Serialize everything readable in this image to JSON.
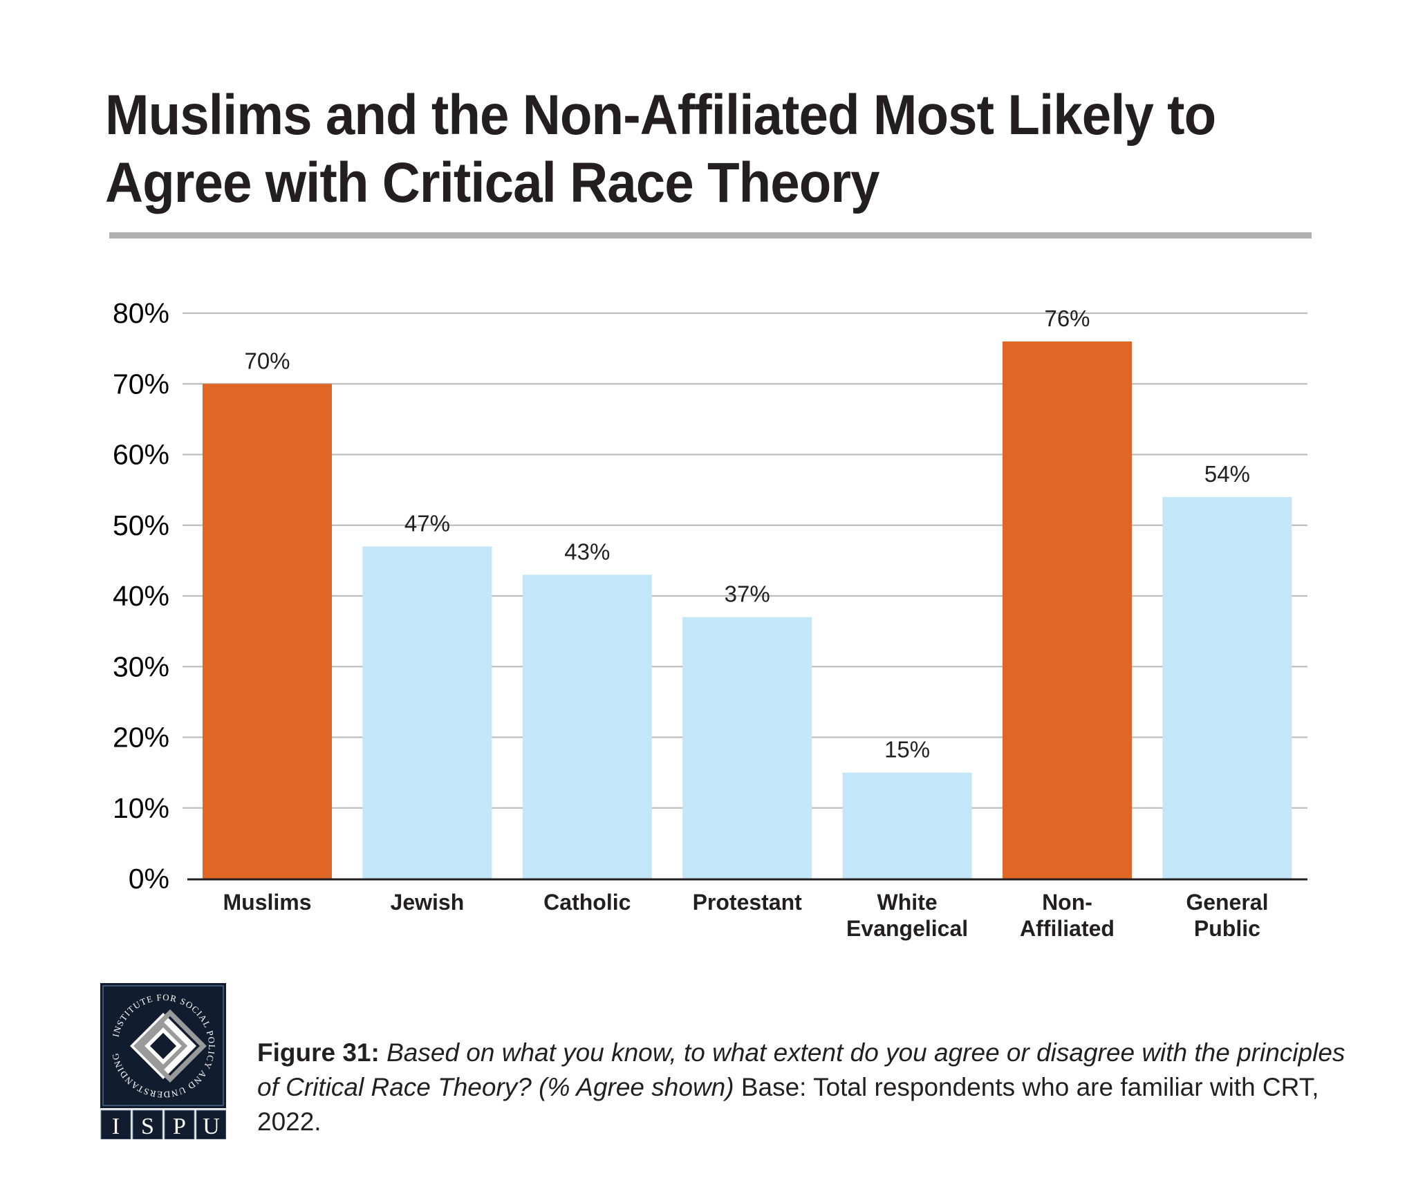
{
  "title": {
    "line1": "Muslims and the Non-Affiliated Most Likely to",
    "line2": "Agree with Critical Race Theory"
  },
  "colors": {
    "highlight": "#e06626",
    "default": "#c3e6f8",
    "gridline": "#bdbdbd",
    "axis": "#231f20",
    "rule": "#b1b1b1",
    "logo_bg": "#111c2e"
  },
  "chart_data": {
    "type": "bar",
    "title": "Muslims and the Non-Affiliated Most Likely to Agree with Critical Race Theory",
    "xlabel": "",
    "ylabel": "",
    "categories": [
      [
        "Muslims"
      ],
      [
        "Jewish"
      ],
      [
        "Catholic"
      ],
      [
        "Protestant"
      ],
      [
        "White",
        "Evangelical"
      ],
      [
        "Non-",
        "Affiliated"
      ],
      [
        "General",
        "Public"
      ]
    ],
    "values": [
      70,
      47,
      43,
      37,
      15,
      76,
      54
    ],
    "value_labels": [
      "70%",
      "47%",
      "43%",
      "37%",
      "15%",
      "76%",
      "54%"
    ],
    "highlighted": [
      true,
      false,
      false,
      false,
      false,
      true,
      false
    ],
    "ylim": [
      0,
      80
    ],
    "yticks": [
      0,
      10,
      20,
      30,
      40,
      50,
      60,
      70,
      80
    ],
    "ytick_labels": [
      "0%",
      "10%",
      "20%",
      "30%",
      "40%",
      "50%",
      "60%",
      "70%",
      "80%"
    ],
    "grid": true,
    "legend": "none"
  },
  "logo": {
    "ring_text": "INSTITUTE FOR SOCIAL POLICY AND UNDERSTANDING",
    "letters": [
      "I",
      "S",
      "P",
      "U"
    ]
  },
  "caption": {
    "figure_label": "Figure 31:",
    "question": "Based on what you know, to what extent do you agree or disagree with the principles of Critical Race Theory? (% Agree shown)",
    "base": "Base: Total respondents who are familiar with CRT, 2022."
  }
}
